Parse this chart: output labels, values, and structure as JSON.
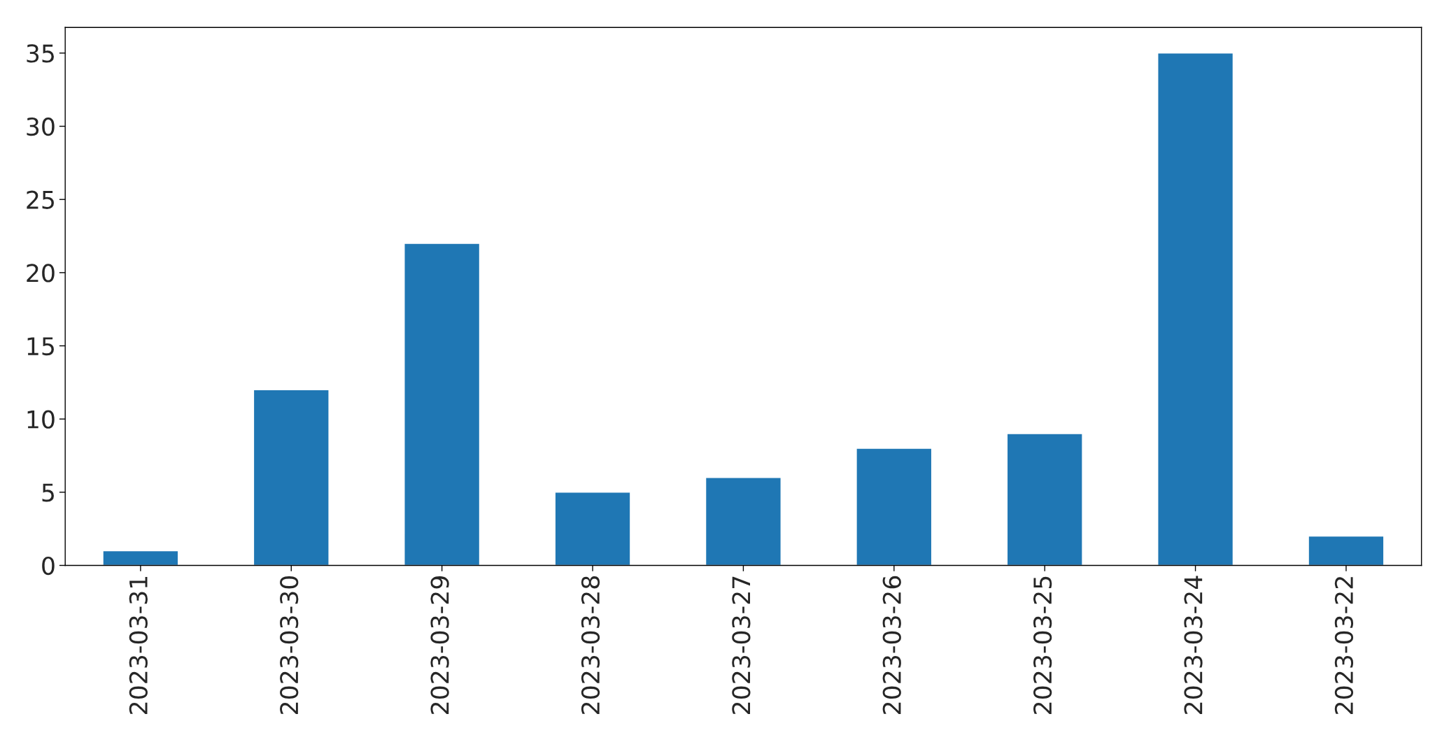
{
  "chart_data": {
    "type": "bar",
    "categories": [
      "2023-03-31",
      "2023-03-30",
      "2023-03-29",
      "2023-03-28",
      "2023-03-27",
      "2023-03-26",
      "2023-03-25",
      "2023-03-24",
      "2023-03-22"
    ],
    "values": [
      1,
      12,
      22,
      5,
      6,
      8,
      9,
      35,
      2
    ],
    "color": "#1f77b4",
    "ylim": [
      0,
      36.75
    ],
    "yticks": [
      0,
      5,
      10,
      15,
      20,
      25,
      30,
      35
    ],
    "grid": false
  }
}
